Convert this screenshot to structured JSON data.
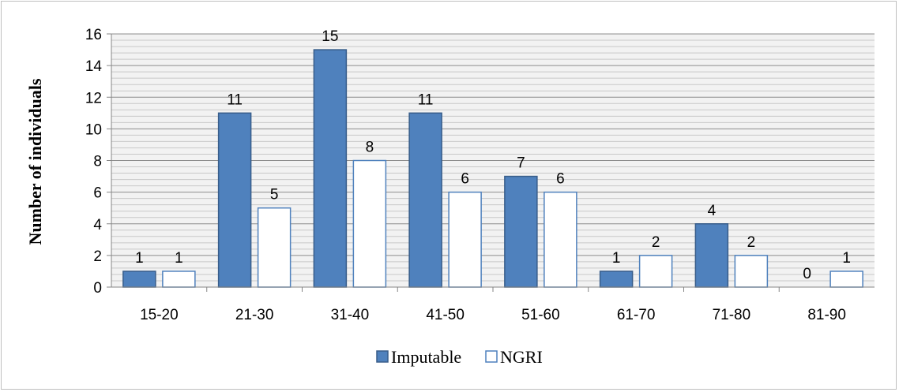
{
  "chart_data": {
    "type": "bar",
    "title": "",
    "xlabel": "",
    "ylabel": "Number of individuals",
    "categories": [
      "15-20",
      "21-30",
      "31-40",
      "41-50",
      "51-60",
      "61-70",
      "71-80",
      "81-90"
    ],
    "series": [
      {
        "name": "Imputable",
        "values": [
          1,
          11,
          15,
          11,
          7,
          1,
          4,
          0
        ]
      },
      {
        "name": "NGRI",
        "values": [
          1,
          5,
          8,
          6,
          6,
          2,
          2,
          1
        ]
      }
    ],
    "ylim": [
      0,
      16
    ],
    "yticks": [
      0,
      2,
      4,
      6,
      8,
      10,
      12,
      14,
      16
    ],
    "grid": "horizontal",
    "legend_position": "bottom",
    "colors": {
      "imputable_fill": "#4f81bd",
      "imputable_stroke": "#385d8a",
      "ngri_fill": "#ffffff",
      "ngri_stroke": "#4f81bd",
      "major_grid": "#8c8c8c",
      "minor_grid": "#c8c8c8",
      "plot_bg": "#f2f2f2"
    }
  }
}
